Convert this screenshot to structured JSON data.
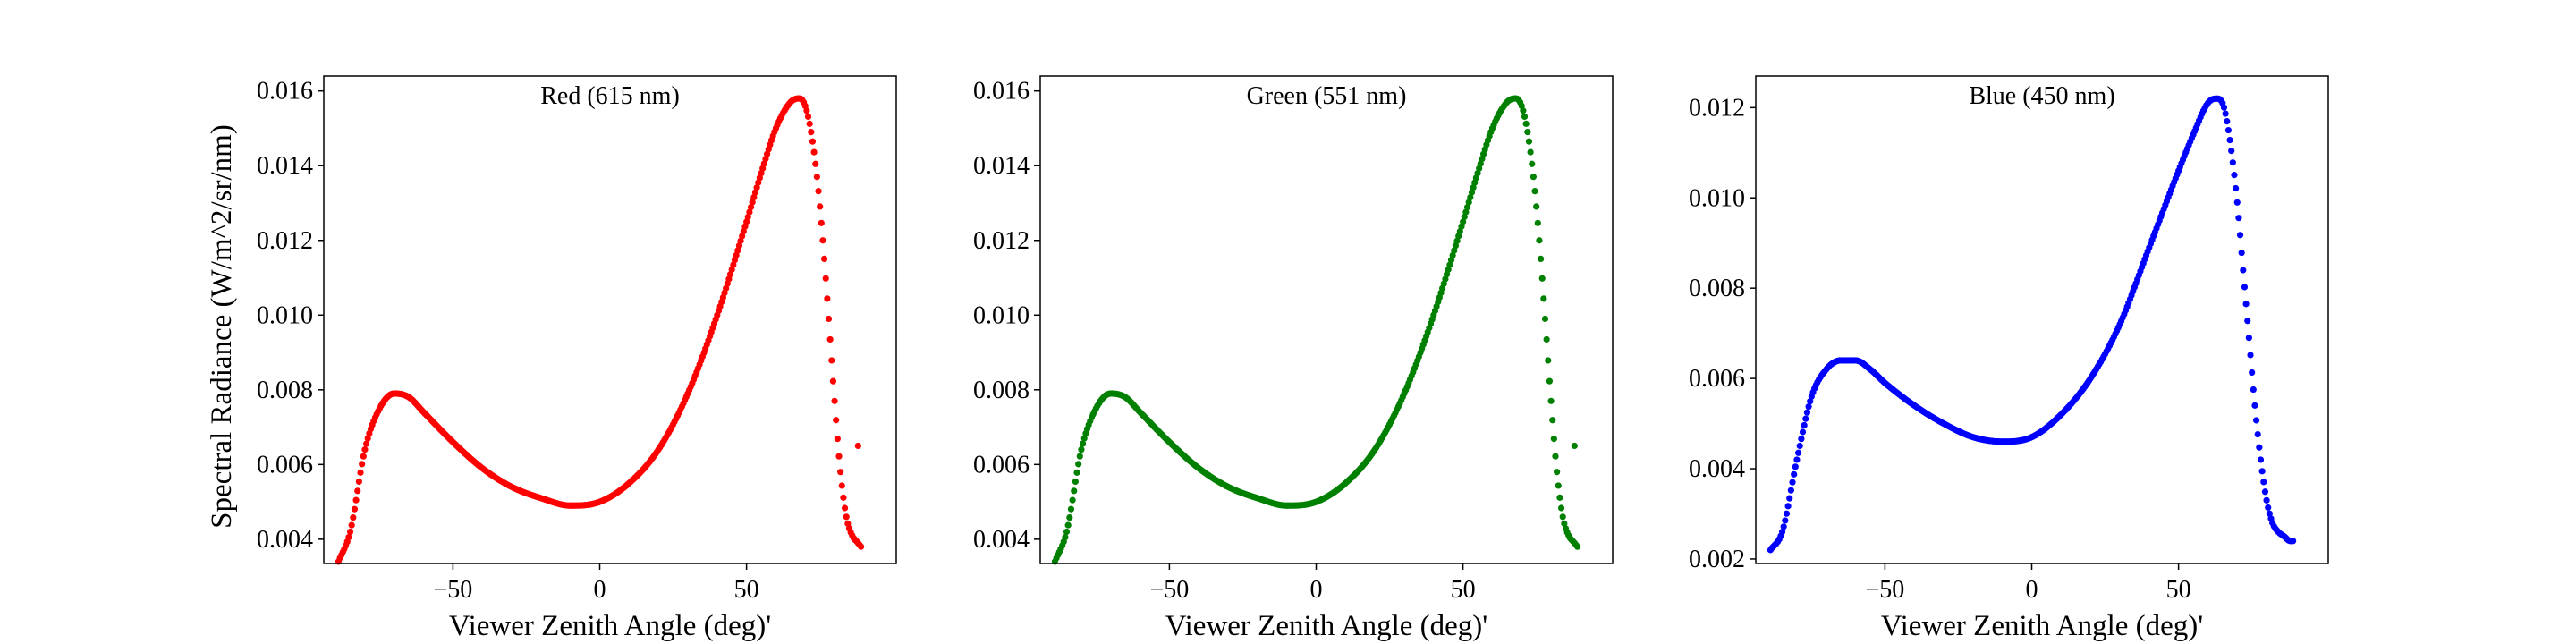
{
  "figure": {
    "ylabel": "Spectral Radiance (W/m^2/sr/nm)"
  },
  "chart_data": [
    {
      "type": "scatter",
      "title": "Red (615 nm)",
      "color": "#ff0000",
      "xlabel": "Viewer Zenith Angle (deg)'",
      "ylabel": "Spectral Radiance (W/m^2/sr/nm)",
      "xlim": [
        -94,
        101
      ],
      "ylim": [
        0.00335,
        0.0164
      ],
      "xticks": [
        -50,
        0,
        50
      ],
      "xtick_labels": [
        "−50",
        "0",
        "50"
      ],
      "yticks": [
        0.004,
        0.006,
        0.008,
        0.01,
        0.012,
        0.014,
        0.016
      ],
      "ytick_labels": [
        "0.004",
        "0.006",
        "0.008",
        "0.010",
        "0.012",
        "0.014",
        "0.016"
      ],
      "x": [
        -89,
        -85,
        -80,
        -75,
        -70,
        -65,
        -60,
        -50,
        -40,
        -30,
        -20,
        -10,
        0,
        10,
        20,
        30,
        40,
        50,
        55,
        60,
        65,
        68,
        70,
        72,
        74,
        76,
        78,
        80,
        82,
        84,
        86,
        88,
        89
      ],
      "y": [
        0.0034,
        0.0042,
        0.0064,
        0.0075,
        0.0079,
        0.0078,
        0.0074,
        0.0066,
        0.0059,
        0.0054,
        0.0051,
        0.0049,
        0.005,
        0.0055,
        0.0064,
        0.0079,
        0.01,
        0.0125,
        0.0138,
        0.015,
        0.0157,
        0.0158,
        0.0156,
        0.0149,
        0.0137,
        0.012,
        0.0099,
        0.0077,
        0.0058,
        0.0046,
        0.0041,
        0.0039,
        0.0038
      ],
      "outliers": [
        {
          "x": 88,
          "y": 0.0065
        }
      ]
    },
    {
      "type": "scatter",
      "title": "Green (551 nm)",
      "color": "#008000",
      "xlabel": "Viewer Zenith Angle (deg)'",
      "ylabel": "",
      "xlim": [
        -94,
        101
      ],
      "ylim": [
        0.00335,
        0.0164
      ],
      "xticks": [
        -50,
        0,
        50
      ],
      "xtick_labels": [
        "−50",
        "0",
        "50"
      ],
      "yticks": [
        0.004,
        0.006,
        0.008,
        0.01,
        0.012,
        0.014,
        0.016
      ],
      "ytick_labels": [
        "0.004",
        "0.006",
        "0.008",
        "0.010",
        "0.012",
        "0.014",
        "0.016"
      ],
      "x": [
        -89,
        -85,
        -80,
        -75,
        -70,
        -65,
        -60,
        -50,
        -40,
        -30,
        -20,
        -10,
        0,
        10,
        20,
        30,
        40,
        50,
        55,
        60,
        65,
        68,
        70,
        72,
        74,
        76,
        78,
        80,
        82,
        84,
        86,
        88,
        89
      ],
      "y": [
        0.0034,
        0.0042,
        0.0064,
        0.0075,
        0.0079,
        0.0078,
        0.0074,
        0.0066,
        0.0059,
        0.0054,
        0.0051,
        0.0049,
        0.005,
        0.0055,
        0.0064,
        0.0079,
        0.01,
        0.0125,
        0.0138,
        0.015,
        0.0157,
        0.0158,
        0.0156,
        0.0149,
        0.0137,
        0.012,
        0.0099,
        0.0077,
        0.0058,
        0.0046,
        0.0041,
        0.0039,
        0.0038
      ],
      "outliers": [
        {
          "x": 88,
          "y": 0.0065
        }
      ]
    },
    {
      "type": "scatter",
      "title": "Blue (450 nm)",
      "color": "#0000ff",
      "xlabel": "Viewer Zenith Angle (deg)'",
      "ylabel": "",
      "xlim": [
        -94,
        101
      ],
      "ylim": [
        0.0019,
        0.0127
      ],
      "xticks": [
        -50,
        0,
        50
      ],
      "xtick_labels": [
        "−50",
        "0",
        "50"
      ],
      "yticks": [
        0.002,
        0.004,
        0.006,
        0.008,
        0.01,
        0.012
      ],
      "ytick_labels": [
        "0.002",
        "0.004",
        "0.006",
        "0.008",
        "0.010",
        "0.012"
      ],
      "x": [
        -89,
        -85,
        -80,
        -75,
        -70,
        -65,
        -60,
        -55,
        -50,
        -40,
        -30,
        -20,
        -10,
        0,
        10,
        20,
        30,
        40,
        50,
        55,
        60,
        63,
        65,
        67,
        70,
        72,
        74,
        76,
        78,
        80,
        82,
        84,
        86,
        88,
        89
      ],
      "y": [
        0.0022,
        0.0026,
        0.0042,
        0.0056,
        0.0062,
        0.0064,
        0.0064,
        0.0062,
        0.0059,
        0.0054,
        0.005,
        0.0047,
        0.0046,
        0.0047,
        0.0052,
        0.006,
        0.0072,
        0.0089,
        0.0106,
        0.0114,
        0.0121,
        0.0122,
        0.0121,
        0.0115,
        0.0099,
        0.0084,
        0.0069,
        0.0054,
        0.0042,
        0.0033,
        0.0028,
        0.0026,
        0.0025,
        0.0024,
        0.0024
      ],
      "outliers": []
    }
  ]
}
